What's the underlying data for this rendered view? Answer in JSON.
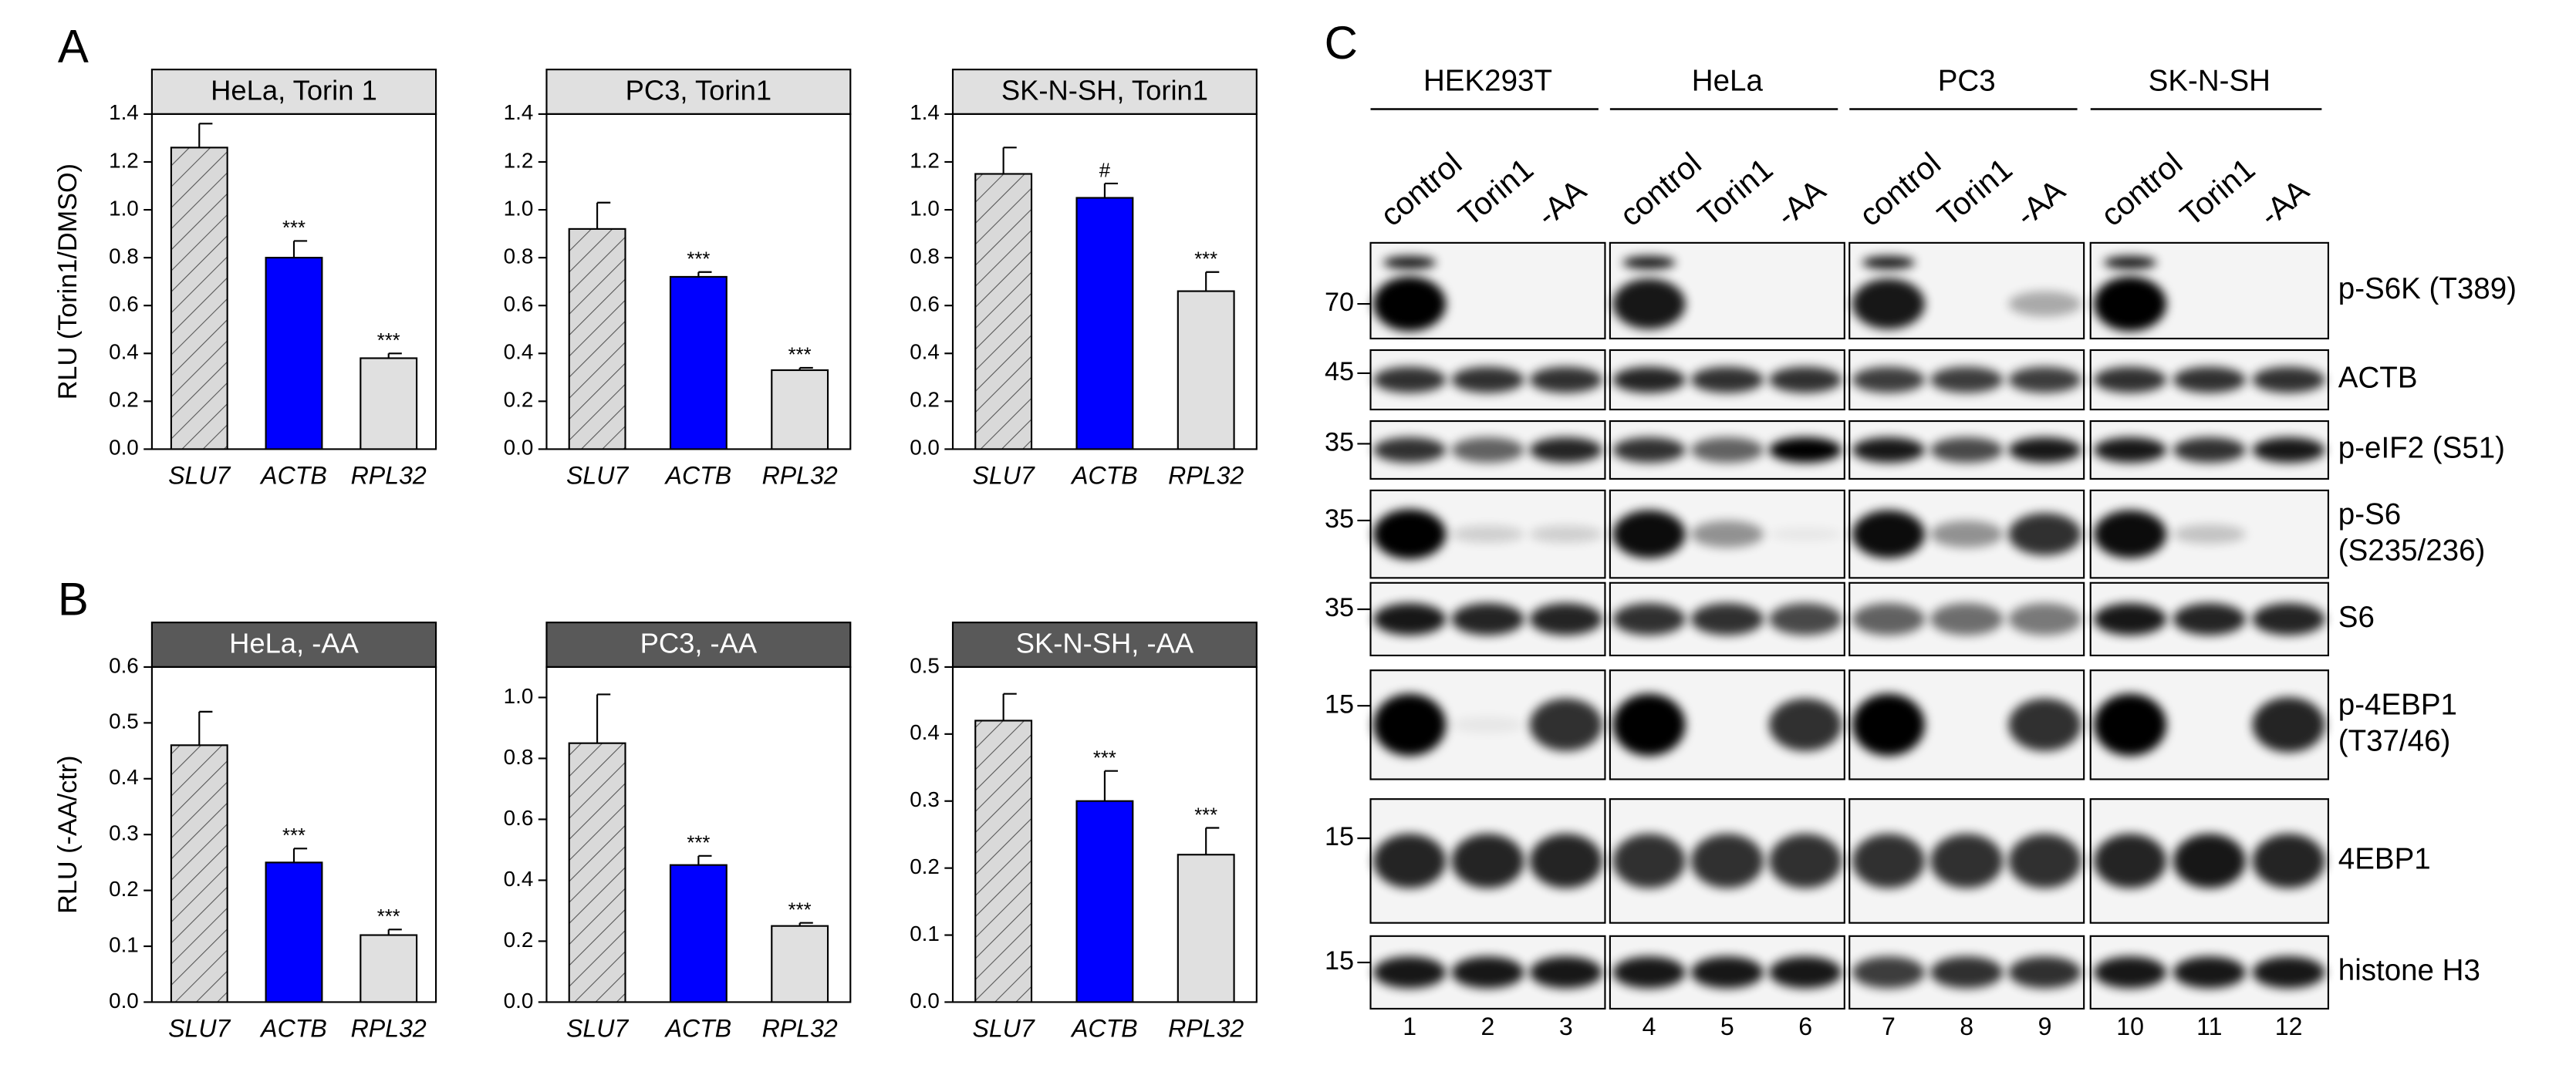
{
  "panel_labels": {
    "A": "A",
    "B": "B",
    "C": "C"
  },
  "chart_data": [
    {
      "type": "bar",
      "title": "HeLa, Torin 1",
      "title_fill": "#e0e0e0",
      "title_color": "#000000",
      "y_label": "RLU (Torin1/DMSO)",
      "categories": [
        "SLU7",
        "ACTB",
        "RPL32"
      ],
      "values": [
        1.26,
        0.8,
        0.38
      ],
      "errors": [
        0.1,
        0.07,
        0.02
      ],
      "colors": [
        "#d9d9d9",
        "#0000ff",
        "#e0e0e0"
      ],
      "hatched": [
        true,
        false,
        false
      ],
      "markers": [
        null,
        "***",
        "***"
      ],
      "ylim": [
        0,
        1.4
      ],
      "yticks": [
        {
          "value": 0,
          "label": "0.0"
        },
        {
          "value": 0.2,
          "label": "0.2"
        },
        {
          "value": 0.4,
          "label": "0.4"
        },
        {
          "value": 0.6,
          "label": "0.6"
        },
        {
          "value": 0.8,
          "label": "0.8"
        },
        {
          "value": 1,
          "label": "1.0"
        },
        {
          "value": 1.2,
          "label": "1.2"
        },
        {
          "value": 1.4,
          "label": "1.4"
        }
      ]
    },
    {
      "type": "bar",
      "title": "PC3, Torin1",
      "title_fill": "#e0e0e0",
      "title_color": "#000000",
      "categories": [
        "SLU7",
        "ACTB",
        "RPL32"
      ],
      "values": [
        0.92,
        0.72,
        0.33
      ],
      "errors": [
        0.11,
        0.02,
        0.01
      ],
      "colors": [
        "#d9d9d9",
        "#0000ff",
        "#e0e0e0"
      ],
      "hatched": [
        true,
        false,
        false
      ],
      "markers": [
        null,
        "***",
        "***"
      ],
      "ylim": [
        0,
        1.4
      ],
      "yticks": [
        {
          "value": 0,
          "label": "0.0"
        },
        {
          "value": 0.2,
          "label": "0.2"
        },
        {
          "value": 0.4,
          "label": "0.4"
        },
        {
          "value": 0.6,
          "label": "0.6"
        },
        {
          "value": 0.8,
          "label": "0.8"
        },
        {
          "value": 1,
          "label": "1.0"
        },
        {
          "value": 1.2,
          "label": "1.2"
        },
        {
          "value": 1.4,
          "label": "1.4"
        }
      ]
    },
    {
      "type": "bar",
      "title": "SK-N-SH, Torin1",
      "title_fill": "#e0e0e0",
      "title_color": "#000000",
      "categories": [
        "SLU7",
        "ACTB",
        "RPL32"
      ],
      "values": [
        1.15,
        1.05,
        0.66
      ],
      "errors": [
        0.11,
        0.06,
        0.08
      ],
      "colors": [
        "#d9d9d9",
        "#0000ff",
        "#e0e0e0"
      ],
      "hatched": [
        true,
        false,
        false
      ],
      "markers": [
        null,
        "#",
        "***"
      ],
      "ylim": [
        0,
        1.4
      ],
      "yticks": [
        {
          "value": 0,
          "label": "0.0"
        },
        {
          "value": 0.2,
          "label": "0.2"
        },
        {
          "value": 0.4,
          "label": "0.4"
        },
        {
          "value": 0.6,
          "label": "0.6"
        },
        {
          "value": 0.8,
          "label": "0.8"
        },
        {
          "value": 1,
          "label": "1.0"
        },
        {
          "value": 1.2,
          "label": "1.2"
        },
        {
          "value": 1.4,
          "label": "1.4"
        }
      ]
    },
    {
      "type": "bar",
      "title": "HeLa, -AA",
      "title_fill": "#595959",
      "title_color": "#ffffff",
      "y_label": "RLU (-AA/ctr)",
      "categories": [
        "SLU7",
        "ACTB",
        "RPL32"
      ],
      "values": [
        0.46,
        0.25,
        0.12
      ],
      "errors": [
        0.06,
        0.025,
        0.01
      ],
      "colors": [
        "#d9d9d9",
        "#0000ff",
        "#e0e0e0"
      ],
      "hatched": [
        true,
        false,
        false
      ],
      "markers": [
        null,
        "***",
        "***"
      ],
      "ylim": [
        0,
        0.6
      ],
      "yticks": [
        {
          "value": 0,
          "label": "0.0"
        },
        0.1,
        0.2,
        0.3,
        0.4,
        0.5,
        0.6
      ]
    },
    {
      "type": "bar",
      "title": "PC3, -AA",
      "title_fill": "#595959",
      "title_color": "#ffffff",
      "categories": [
        "SLU7",
        "ACTB",
        "RPL32"
      ],
      "values": [
        0.85,
        0.45,
        0.25
      ],
      "errors": [
        0.16,
        0.03,
        0.01
      ],
      "colors": [
        "#d9d9d9",
        "#0000ff",
        "#e0e0e0"
      ],
      "hatched": [
        true,
        false,
        false
      ],
      "markers": [
        null,
        "***",
        "***"
      ],
      "ylim": [
        0,
        1.1
      ],
      "yticks": [
        {
          "value": 0,
          "label": "0.0"
        },
        0.2,
        0.4,
        0.6,
        0.8,
        {
          "value": 1,
          "label": "1.0"
        }
      ]
    },
    {
      "type": "bar",
      "title": "SK-N-SH, -AA",
      "title_fill": "#595959",
      "title_color": "#ffffff",
      "categories": [
        "SLU7",
        "ACTB",
        "RPL32"
      ],
      "values": [
        0.42,
        0.3,
        0.22
      ],
      "errors": [
        0.04,
        0.045,
        0.04
      ],
      "colors": [
        "#d9d9d9",
        "#0000ff",
        "#e0e0e0"
      ],
      "hatched": [
        true,
        false,
        false
      ],
      "markers": [
        null,
        "***",
        "***"
      ],
      "ylim": [
        0,
        0.5
      ],
      "yticks": [
        {
          "value": 0,
          "label": "0.0"
        },
        0.1,
        0.2,
        0.3,
        0.4,
        0.5
      ]
    }
  ],
  "blot": {
    "cell_lines": [
      "HEK293T",
      "HeLa",
      "PC3",
      "SK-N-SH"
    ],
    "treatments": [
      "control",
      "Torin1",
      "-AA"
    ],
    "rows": [
      {
        "label": [
          "p-S6K (T389)"
        ],
        "mw": 70
      },
      {
        "label": [
          "ACTB"
        ],
        "mw": 45
      },
      {
        "label": [
          "p-eIF2 (S51)"
        ],
        "mw": 35
      },
      {
        "label": [
          "p-S6",
          "(S235/236)"
        ],
        "mw": 35
      },
      {
        "label": [
          "S6"
        ],
        "mw": 35
      },
      {
        "label": [
          "p-4EBP1",
          "(T37/46)"
        ],
        "mw": 15
      },
      {
        "label": [
          "4EBP1"
        ],
        "mw": 15
      },
      {
        "label": [
          "histone H3"
        ],
        "mw": 15
      }
    ],
    "lane_numbers": [
      1,
      2,
      3,
      4,
      5,
      6,
      7,
      8,
      9,
      10,
      11,
      12
    ]
  }
}
